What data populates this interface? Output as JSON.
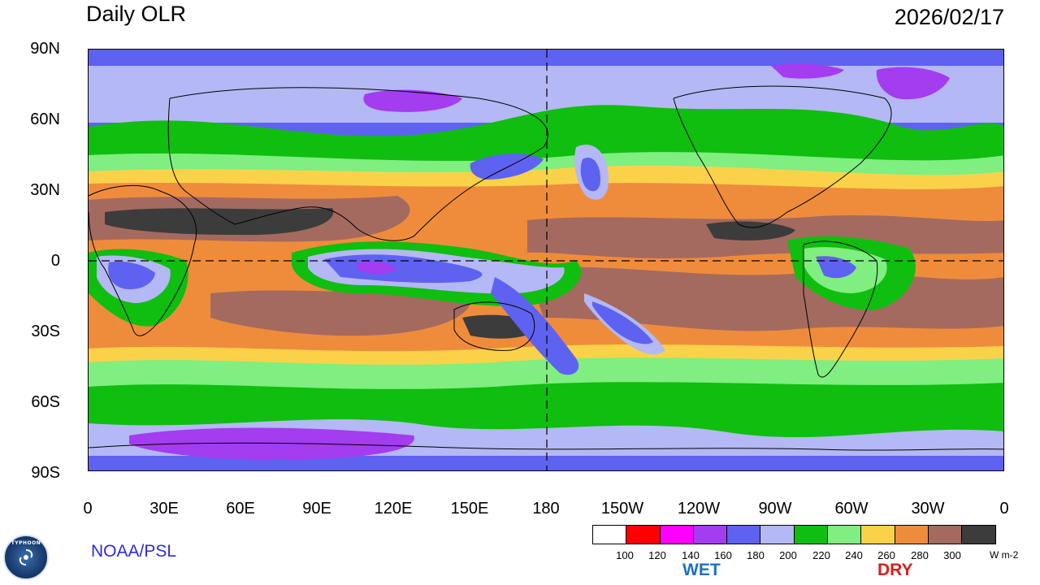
{
  "header": {
    "title": "Daily OLR",
    "date": "2026/02/17"
  },
  "map": {
    "lat_labels": [
      "90N",
      "60N",
      "30N",
      "0",
      "30S",
      "60S",
      "90S"
    ],
    "lon_labels": [
      "0",
      "30E",
      "60E",
      "90E",
      "120E",
      "150E",
      "180",
      "150W",
      "120W",
      "90W",
      "60W",
      "30W",
      "0"
    ]
  },
  "legend": {
    "colors": [
      "#ffffff",
      "#ff0000",
      "#ff00ff",
      "#a43cf0",
      "#5e62f0",
      "#b4b8f4",
      "#0fbe0f",
      "#80ee80",
      "#fad24a",
      "#ef8c3c",
      "#a46a60",
      "#3c3c3c"
    ],
    "ticks": [
      "100",
      "120",
      "140",
      "160",
      "180",
      "200",
      "220",
      "240",
      "260",
      "280",
      "300"
    ],
    "unit": "W m-2",
    "wet_label": "WET",
    "dry_label": "DRY"
  },
  "footer": {
    "source": "NOAA/PSL",
    "logo_text": "TYPHOON"
  }
}
